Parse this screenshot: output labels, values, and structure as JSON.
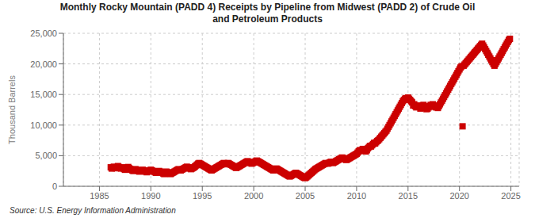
{
  "chart_data": {
    "type": "scatter",
    "title": "Monthly Rocky Mountain (PADD 4) Receipts by Pipeline from Midwest (PADD 2) of Crude Oil\nand Petroleum Products",
    "ylabel": "Thousand Barrels",
    "annotations": [
      "Source: U.S. Energy Information Administration"
    ],
    "color": "#cc0000",
    "marker": "square",
    "grid": true,
    "xlim": [
      1981.5,
      2025.8
    ],
    "xticks": [
      1985,
      1990,
      1995,
      2000,
      2005,
      2010,
      2015,
      2020,
      2025
    ],
    "ylim": [
      0,
      25000
    ],
    "yticks": [
      0,
      {
        "value": 5000,
        "label": "5,000"
      },
      {
        "value": 10000,
        "label": "10,000"
      },
      {
        "value": 15000,
        "label": "15,000"
      },
      {
        "value": 20000,
        "label": "20,000"
      },
      {
        "value": 25000,
        "label": "25,000"
      }
    ],
    "x": [
      1986.1,
      1986.2,
      1986.3,
      1986.4,
      1986.5,
      1986.6,
      1986.7,
      1986.8,
      1986.9,
      1987.0,
      1987.1,
      1987.2,
      1987.3,
      1987.4,
      1987.5,
      1987.6,
      1987.7,
      1987.8,
      1987.9,
      1988.0,
      1988.1,
      1988.2,
      1988.3,
      1988.4,
      1988.5,
      1988.6,
      1988.7,
      1988.8,
      1988.9,
      1989.0,
      1989.1,
      1989.2,
      1989.3,
      1989.4,
      1989.5,
      1989.6,
      1989.7,
      1989.8,
      1989.9,
      1990.0,
      1990.1,
      1990.2,
      1990.3,
      1990.4,
      1990.5,
      1990.6,
      1990.7,
      1990.8,
      1990.9,
      1991.0,
      1991.1,
      1991.2,
      1991.3,
      1991.4,
      1991.5,
      1991.6,
      1991.7,
      1991.8,
      1991.9,
      1992.0,
      1992.1,
      1992.2,
      1992.3,
      1992.4,
      1992.5,
      1992.6,
      1992.7,
      1992.8,
      1992.9,
      1993.0,
      1993.1,
      1993.2,
      1993.3,
      1993.4,
      1993.5,
      1993.6,
      1993.7,
      1993.8,
      1993.9,
      1994.0,
      1994.1,
      1994.2,
      1994.3,
      1994.4,
      1994.5,
      1994.6,
      1994.7,
      1994.8,
      1994.9,
      1995.0,
      1995.1,
      1995.2,
      1995.3,
      1995.4,
      1995.5,
      1995.6,
      1995.7,
      1995.8,
      1995.9,
      1996.0,
      1996.1,
      1996.2,
      1996.3,
      1996.4,
      1996.5,
      1996.6,
      1996.7,
      1996.8,
      1996.9,
      1997.0,
      1997.1,
      1997.2,
      1997.3,
      1997.4,
      1997.5,
      1997.6,
      1997.7,
      1997.8,
      1997.9,
      1998.0,
      1998.1,
      1998.2,
      1998.3,
      1998.4,
      1998.5,
      1998.6,
      1998.7,
      1998.8,
      1998.9,
      1999.0,
      1999.1,
      1999.2,
      1999.3,
      1999.4,
      1999.5,
      1999.6,
      1999.7,
      1999.8,
      1999.9,
      2000.0,
      2000.1,
      2000.2,
      2000.3,
      2000.4,
      2000.5,
      2000.6,
      2000.7,
      2000.8,
      2000.9,
      2001.0,
      2001.1,
      2001.2,
      2001.3,
      2001.4,
      2001.5,
      2001.6,
      2001.7,
      2001.8,
      2001.9,
      2002.0,
      2002.1,
      2002.2,
      2002.3,
      2002.4,
      2002.5,
      2002.6,
      2002.7,
      2002.8,
      2002.9,
      2003.0,
      2003.1,
      2003.2,
      2003.3,
      2003.4,
      2003.5,
      2003.6,
      2003.7,
      2003.8,
      2003.9,
      2004.0,
      2004.1,
      2004.2,
      2004.3,
      2004.4,
      2004.5,
      2004.6,
      2004.7,
      2004.8,
      2004.9,
      2005.0,
      2005.1,
      2005.2,
      2005.3,
      2005.4,
      2005.5,
      2005.6,
      2005.7,
      2005.8,
      2005.9,
      2006.0,
      2006.1,
      2006.2,
      2006.3,
      2006.4,
      2006.5,
      2006.6,
      2006.7,
      2006.8,
      2006.9,
      2007.0,
      2007.1,
      2007.2,
      2007.3,
      2007.4,
      2007.5,
      2007.6,
      2007.7,
      2007.8,
      2007.9,
      2008.0,
      2008.1,
      2008.2,
      2008.3,
      2008.4,
      2008.5,
      2008.6,
      2008.7,
      2008.8,
      2008.9,
      2009.0,
      2009.1,
      2009.2,
      2009.3,
      2009.4,
      2009.5,
      2009.6,
      2009.7,
      2009.8,
      2009.9,
      2010.0,
      2010.1,
      2010.2,
      2010.3,
      2010.4,
      2010.5,
      2010.6,
      2010.7,
      2010.8,
      2010.9,
      2011.0,
      2011.1,
      2011.2,
      2011.3,
      2011.4,
      2011.5,
      2011.6,
      2011.7,
      2011.8,
      2011.9,
      2012.0,
      2012.1,
      2012.2,
      2012.3,
      2012.4,
      2012.5,
      2012.6,
      2012.7,
      2012.8,
      2012.9,
      2013.0,
      2013.1,
      2013.2,
      2013.3,
      2013.4,
      2013.5,
      2013.6,
      2013.7,
      2013.8,
      2013.9,
      2014.0,
      2014.1,
      2014.2,
      2014.3,
      2014.4,
      2014.5,
      2014.6,
      2014.7,
      2014.8,
      2014.9,
      2015.0,
      2015.1,
      2015.2,
      2015.3,
      2015.4,
      2015.5,
      2015.6,
      2015.7,
      2015.8,
      2015.9,
      2016.0,
      2016.1,
      2016.2,
      2016.3,
      2016.4,
      2016.5,
      2016.6,
      2016.7,
      2016.8,
      2016.9,
      2017.0,
      2017.1,
      2017.2,
      2017.3,
      2017.4,
      2017.5,
      2017.6,
      2017.7,
      2017.8,
      2017.9,
      2018.0,
      2018.1,
      2018.2,
      2018.3,
      2018.4,
      2018.5,
      2018.6,
      2018.7,
      2018.8,
      2018.9,
      2019.0,
      2019.1,
      2019.2,
      2019.3,
      2019.4,
      2019.5,
      2019.6,
      2019.7,
      2019.8,
      2019.9,
      2020.0,
      2020.1,
      2020.2,
      2020.3,
      2020.4,
      2020.5,
      2020.6,
      2020.7,
      2020.8,
      2020.9,
      2021.0,
      2021.1,
      2021.2,
      2021.3,
      2021.4,
      2021.5,
      2021.6,
      2021.7,
      2021.8,
      2021.9,
      2022.0,
      2022.1,
      2022.2,
      2022.3,
      2022.4,
      2022.5,
      2022.6,
      2022.7,
      2022.8,
      2022.9,
      2023.0,
      2023.1,
      2023.2,
      2023.3,
      2023.4,
      2023.5,
      2023.6,
      2023.7,
      2023.8,
      2023.9,
      2024.0,
      2024.1,
      2024.2,
      2024.3,
      2024.4,
      2024.5,
      2024.6,
      2024.7,
      2024.8,
      2024.9
    ],
    "values": [
      3100,
      2900,
      3050,
      3200,
      3100,
      2950,
      3100,
      3300,
      3150,
      3000,
      2900,
      3100,
      3000,
      2800,
      2700,
      2900,
      3000,
      3150,
      2950,
      2800,
      2700,
      2600,
      2500,
      2700,
      2800,
      2700,
      2600,
      2500,
      2400,
      2500,
      2600,
      2700,
      2600,
      2500,
      2400,
      2300,
      2400,
      2500,
      2600,
      2700,
      2600,
      2500,
      2400,
      2300,
      2200,
      2300,
      2400,
      2500,
      2400,
      2300,
      2200,
      2100,
      2000,
      2200,
      2400,
      2300,
      2200,
      2100,
      2000,
      2100,
      2200,
      2300,
      2400,
      2500,
      2600,
      2700,
      2800,
      2700,
      2600,
      2700,
      2800,
      2900,
      3000,
      3100,
      3200,
      3100,
      3000,
      2900,
      2800,
      2900,
      3000,
      3100,
      3250,
      3400,
      3550,
      3700,
      3800,
      3700,
      3600,
      3500,
      3400,
      3300,
      3200,
      3100,
      3000,
      2900,
      2800,
      2700,
      2600,
      2700,
      2800,
      2900,
      3000,
      3100,
      3200,
      3300,
      3400,
      3500,
      3600,
      3700,
      3800,
      3700,
      3600,
      3700,
      3800,
      3700,
      3600,
      3500,
      3400,
      3300,
      3200,
      3100,
      3000,
      3100,
      3200,
      3300,
      3400,
      3500,
      3600,
      3700,
      3800,
      3900,
      4000,
      4100,
      4000,
      3900,
      3800,
      3700,
      3800,
      3900,
      4000,
      4100,
      4200,
      4100,
      4000,
      3900,
      3800,
      3700,
      3600,
      3500,
      3400,
      3300,
      3200,
      3100,
      3000,
      2900,
      2800,
      2700,
      2600,
      2700,
      2800,
      2900,
      2800,
      2700,
      2600,
      2500,
      2400,
      2300,
      2200,
      2100,
      2000,
      1900,
      1800,
      1700,
      1600,
      1700,
      1800,
      1900,
      2000,
      2100,
      2200,
      2100,
      2000,
      1900,
      1800,
      1700,
      1600,
      1500,
      1400,
      1350,
      1450,
      1600,
      1750,
      1900,
      2050,
      2200,
      2350,
      2500,
      2650,
      2800,
      2900,
      3000,
      3100,
      3200,
      3300,
      3400,
      3500,
      3600,
      3700,
      3800,
      3750,
      3700,
      3800,
      3900,
      4000,
      3900,
      3800,
      3900,
      4000,
      4100,
      4200,
      4300,
      4400,
      4500,
      4600,
      4700,
      4600,
      4500,
      4400,
      4300,
      4400,
      4500,
      4600,
      4700,
      4800,
      4900,
      5000,
      5100,
      5200,
      5300,
      5500,
      5700,
      5900,
      5800,
      5900,
      6100,
      6000,
      5800,
      5700,
      5900,
      6200,
      6400,
      6600,
      6500,
      6700,
      6900,
      7100,
      7000,
      7200,
      7400,
      7500,
      7700,
      7900,
      8100,
      8300,
      8500,
      8700,
      8900,
      9100,
      9400,
      9700,
      10000,
      10300,
      10600,
      10900,
      11200,
      11500,
      11800,
      12100,
      12400,
      12700,
      13000,
      13300,
      13600,
      13900,
      14100,
      14300,
      14400,
      14200,
      14500,
      14300,
      14100,
      13900,
      13700,
      13200,
      13400,
      13100,
      12900,
      13000,
      13200,
      13000,
      12700,
      12900,
      13100,
      13300,
      13000,
      12800,
      12600,
      12700,
      12900,
      13100,
      13300,
      13200,
      13400,
      13200,
      13000,
      12900,
      13100,
      12800,
      13100,
      13400,
      13700,
      14000,
      14300,
      14600,
      14900,
      15200,
      15500,
      15800,
      16100,
      16400,
      16700,
      17000,
      17300,
      17600,
      17900,
      18200,
      18500,
      18800,
      19100,
      19400,
      19600,
      9800,
      19700,
      19900,
      20100,
      20300,
      20500,
      20700,
      20900,
      21100,
      21300,
      21500,
      21700,
      21900,
      22100,
      22300,
      22500,
      22700,
      22900,
      23100,
      23300,
      23000,
      22700,
      22400,
      22100,
      21800,
      21500,
      21200,
      20900,
      20600,
      20300,
      20000,
      19700,
      20000,
      20300,
      20600,
      20900,
      21200,
      21500,
      21800,
      22100,
      22400,
      22700,
      23000,
      23300,
      23600,
      23900,
      24100
    ]
  }
}
